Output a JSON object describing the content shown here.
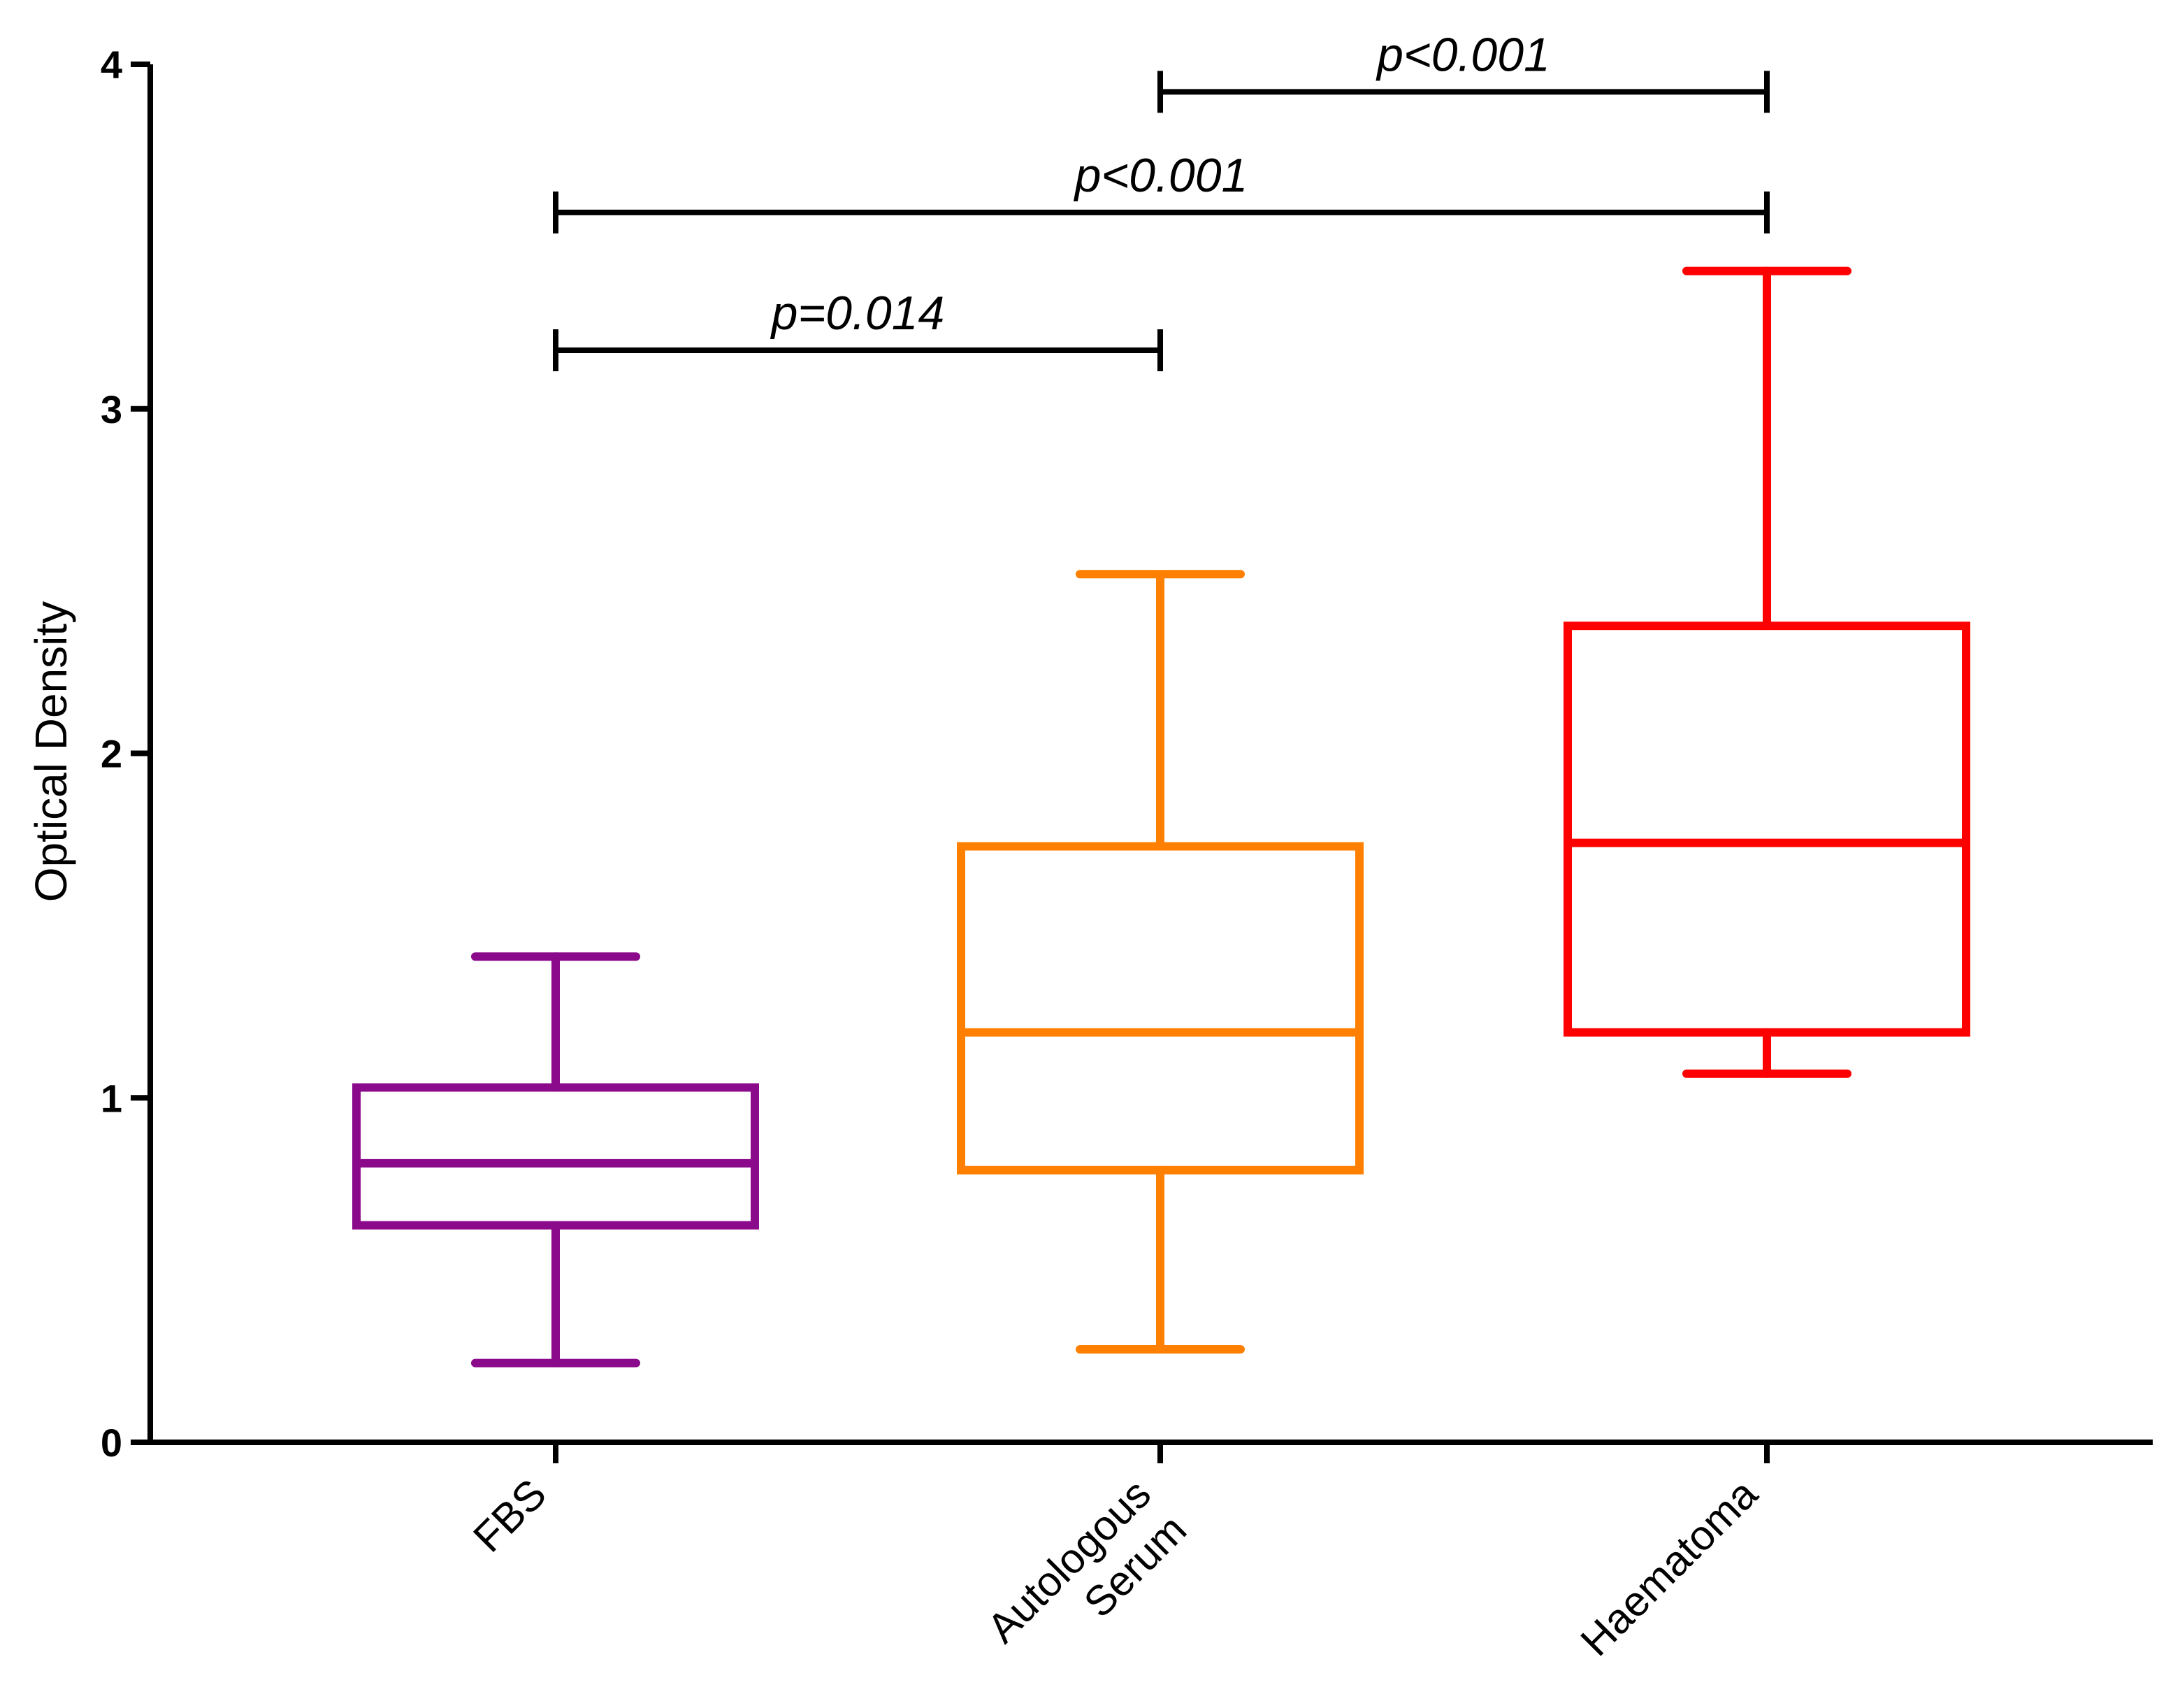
{
  "chart_data": {
    "type": "box",
    "title": "",
    "xlabel": "",
    "ylabel": "Optical Density",
    "ylim": [
      0,
      4
    ],
    "yticks": [
      0,
      1,
      2,
      3,
      4
    ],
    "categories": [
      {
        "name": "FBS",
        "lines": [
          "FBS"
        ]
      },
      {
        "name": "Autologous Serum",
        "lines": [
          "Autologous",
          "Serum"
        ]
      },
      {
        "name": "Haematoma",
        "lines": [
          "Haematoma"
        ]
      }
    ],
    "boxes": [
      {
        "category": "FBS",
        "min": 0.23,
        "q1": 0.63,
        "median": 0.81,
        "q3": 1.03,
        "max": 1.41,
        "color": "#8B0A8B"
      },
      {
        "category": "Autologous Serum",
        "min": 0.27,
        "q1": 0.79,
        "median": 1.19,
        "q3": 1.73,
        "max": 2.52,
        "color": "#FF8000"
      },
      {
        "category": "Haematoma",
        "min": 1.07,
        "q1": 1.19,
        "median": 1.74,
        "q3": 2.37,
        "max": 3.4,
        "color": "#FF0000"
      }
    ],
    "comparisons": [
      {
        "from": 0,
        "to": 1,
        "y": 3.17,
        "label": "p=0.014"
      },
      {
        "from": 0,
        "to": 2,
        "y": 3.57,
        "label": "p<0.001"
      },
      {
        "from": 1,
        "to": 2,
        "y": 3.92,
        "label": "p<0.001"
      }
    ],
    "axis_color": "#000000"
  }
}
